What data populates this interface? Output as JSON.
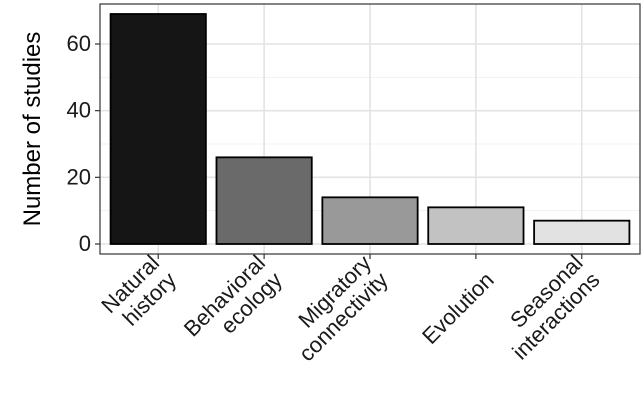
{
  "chart_data": {
    "type": "bar",
    "categories": [
      [
        "Natural",
        "history"
      ],
      [
        "Behavioral",
        "ecology"
      ],
      [
        "Migratory",
        "connectivity"
      ],
      [
        "Evolution"
      ],
      [
        "Seasonal",
        "interactions"
      ]
    ],
    "values": [
      69,
      26,
      14,
      11,
      7
    ],
    "bar_colors": [
      "#151515",
      "#6a6a6a",
      "#999999",
      "#c2c2c2",
      "#e2e2e2"
    ],
    "ylabel": "Number of studies",
    "xlabel": "",
    "title": "",
    "y_ticks": [
      0,
      20,
      40,
      60
    ],
    "ylim": [
      -3,
      72
    ],
    "grid": true,
    "legend": "none"
  }
}
